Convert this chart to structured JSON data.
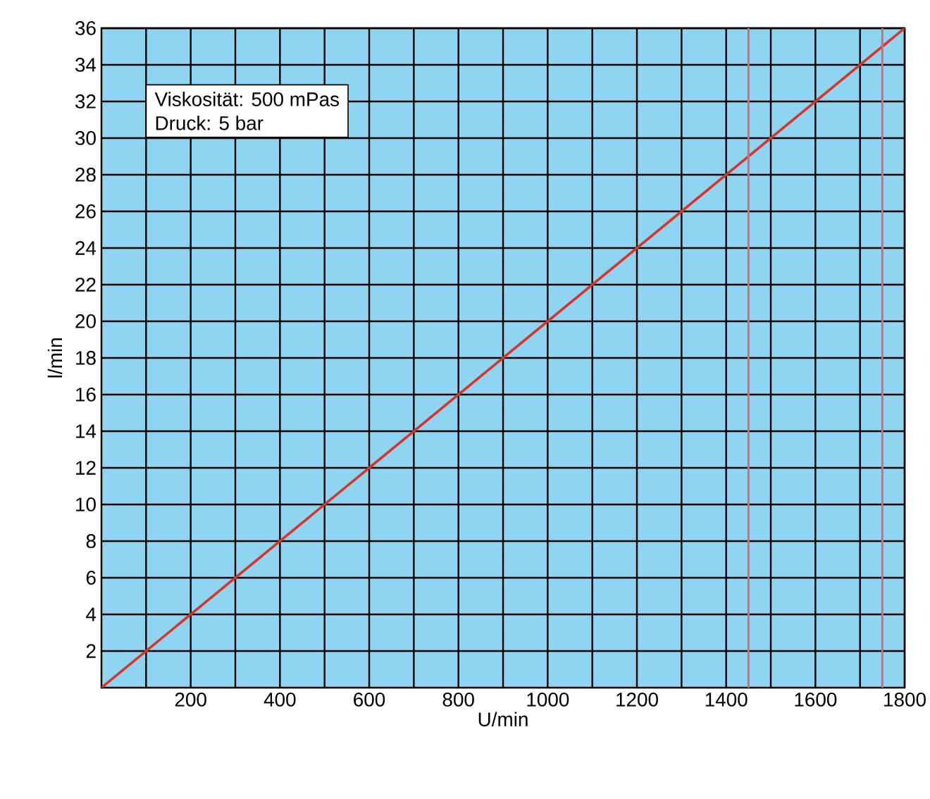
{
  "chart_data": {
    "type": "line",
    "xlabel": "U/min",
    "ylabel": "l/min",
    "x": [
      0,
      1800
    ],
    "series": [
      {
        "color": "#d9342b",
        "values": [
          0,
          36
        ]
      }
    ],
    "xlim": [
      0,
      1800
    ],
    "ylim": [
      0,
      36
    ],
    "xticks": [
      {
        "value": 100,
        "label": null
      },
      200,
      {
        "value": 300,
        "label": null
      },
      400,
      {
        "value": 500,
        "label": null
      },
      600,
      {
        "value": 700,
        "label": null
      },
      800,
      {
        "value": 900,
        "label": null
      },
      1000,
      {
        "value": 1100,
        "label": null
      },
      1200,
      {
        "value": 1300,
        "label": null
      },
      1400,
      {
        "value": 1500,
        "label": null
      },
      1600,
      {
        "value": 1700,
        "label": null
      },
      1800
    ],
    "yticks": [
      2,
      4,
      6,
      8,
      10,
      12,
      14,
      16,
      18,
      20,
      22,
      24,
      26,
      28,
      30,
      32,
      34,
      36
    ],
    "grid": true,
    "marker": "none",
    "line_style": "solid",
    "ref_lines": [
      {
        "axis": "x",
        "value": 1450,
        "color": "#c9707a"
      },
      {
        "axis": "x",
        "value": 1750,
        "color": "#c9707a"
      }
    ],
    "annotations": [
      "Viskosität: 500 mPas",
      "Druck: 5 bar"
    ]
  }
}
